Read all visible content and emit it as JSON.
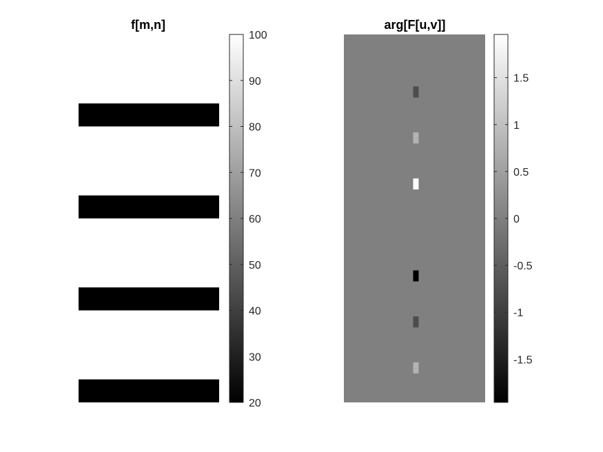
{
  "chart_data": [
    {
      "type": "heatmap",
      "title": "f[m,n]",
      "colormap": "gray",
      "colorbar": {
        "range": [
          20,
          100
        ],
        "ticks": [
          20,
          30,
          40,
          50,
          60,
          70,
          80,
          90,
          100
        ],
        "tick_labels": [
          "20",
          "30",
          "40",
          "50",
          "60",
          "70",
          "80",
          "90",
          "100"
        ]
      },
      "image": {
        "rows": 16,
        "background_value": 100,
        "stripes": [
          {
            "row_start": 3,
            "row_end": 4,
            "value": 20
          },
          {
            "row_start": 7,
            "row_end": 8,
            "value": 20
          },
          {
            "row_start": 11,
            "row_end": 12,
            "value": 20
          },
          {
            "row_start": 15,
            "row_end": 16,
            "value": 20
          }
        ]
      }
    },
    {
      "type": "heatmap",
      "title": "arg[F[u,v]]",
      "colormap": "gray",
      "colorbar": {
        "range": [
          -1.96,
          1.96
        ],
        "ticks": [
          -1.5,
          -1,
          -0.5,
          0,
          0.5,
          1,
          1.5
        ],
        "tick_labels": [
          "-1.5",
          "-1",
          "-0.5",
          "0",
          "0.5",
          "1",
          "1.5"
        ]
      },
      "image": {
        "rows": 16,
        "background_value": 0,
        "center_column_cells": [
          {
            "row": 2,
            "value": -0.785
          },
          {
            "row": 4,
            "value": 0.785
          },
          {
            "row": 6,
            "value": 1.96
          },
          {
            "row": 10,
            "value": -1.96
          },
          {
            "row": 12,
            "value": -0.785
          },
          {
            "row": 14,
            "value": 0.785
          }
        ]
      }
    }
  ]
}
